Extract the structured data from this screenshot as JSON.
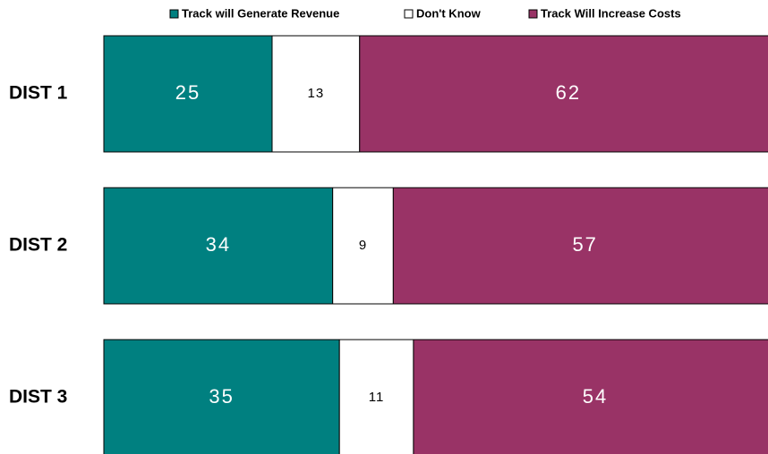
{
  "chart_data": {
    "type": "stacked-bar-horizontal",
    "categories": [
      "DIST 1",
      "DIST 2",
      "DIST 3"
    ],
    "series": [
      {
        "name": "Track will Generate Revenue",
        "color": "#008080",
        "values": [
          25,
          34,
          35
        ]
      },
      {
        "name": "Don't Know",
        "color": "#ffffff",
        "values": [
          13,
          9,
          11
        ]
      },
      {
        "name": "Track Will Increase Costs",
        "color": "#993366",
        "values": [
          62,
          57,
          54
        ]
      }
    ],
    "xlim": [
      0,
      100
    ],
    "legend": "top"
  }
}
